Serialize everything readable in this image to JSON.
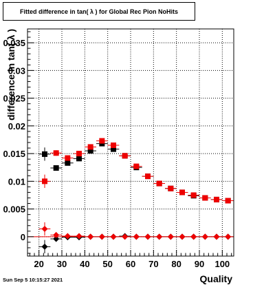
{
  "title": "Fitted difference in tan( λ ) for Global Rec Pion NoHits",
  "timestamp": "Sun Sep  5 10:15:27 2021",
  "chart_data": {
    "type": "scatter",
    "title": "Fitted difference in tan( λ ) for Global Rec Pion NoHits",
    "xlabel": "Quality",
    "ylabel": "difference in tan( λ )",
    "xlim": [
      15,
      105
    ],
    "ylim": [
      -0.0035,
      0.0375
    ],
    "xticks": [
      20,
      30,
      40,
      50,
      60,
      70,
      80,
      90,
      100
    ],
    "yticks": [
      0,
      0.005,
      0.01,
      0.015,
      0.02,
      0.025,
      0.03,
      0.035
    ],
    "ytick_labels": [
      "0",
      "0.005",
      "0.01",
      "0.015",
      "0.02",
      "0.025",
      "0.03",
      "0.035"
    ],
    "grid": true,
    "series": [
      {
        "marker": "square",
        "color": "#000000",
        "x": [
          22.5,
          27.5,
          32.5,
          37.5,
          42.5,
          47.5,
          52.5,
          57.5,
          62.5,
          67.5,
          72.5,
          77.5,
          82.5,
          87.5,
          92.5,
          97.5,
          102.5
        ],
        "y": [
          0.0149,
          0.0124,
          0.0133,
          0.0141,
          0.0155,
          0.0168,
          0.0158,
          0.0146,
          0.0125,
          0.0109,
          0.0096,
          0.0087,
          0.008,
          0.0074,
          0.007,
          0.0067,
          0.0065
        ],
        "yerr": [
          0.0012,
          0.0004,
          0.0003,
          0.0003,
          0.0003,
          0.0003,
          0.0003,
          0.0003,
          0.0002,
          0.0002,
          0.0002,
          0.0002,
          0.0002,
          0.0002,
          0.0002,
          0.0002,
          0.0002
        ]
      },
      {
        "marker": "square",
        "color": "#ee0000",
        "x": [
          22.5,
          27.5,
          32.5,
          37.5,
          42.5,
          47.5,
          52.5,
          57.5,
          62.5,
          67.5,
          72.5,
          77.5,
          82.5,
          87.5,
          92.5,
          97.5,
          102.5
        ],
        "y": [
          0.01,
          0.0151,
          0.0142,
          0.015,
          0.0162,
          0.0173,
          0.0165,
          0.0146,
          0.0127,
          0.0109,
          0.0096,
          0.0087,
          0.008,
          0.0075,
          0.007,
          0.0067,
          0.0065
        ],
        "yerr": [
          0.0012,
          0.0005,
          0.0004,
          0.0003,
          0.0003,
          0.0003,
          0.0003,
          0.0003,
          0.0002,
          0.0002,
          0.0002,
          0.0002,
          0.0002,
          0.0002,
          0.0002,
          0.0002,
          0.0002
        ]
      },
      {
        "marker": "diamond",
        "color": "#000000",
        "x": [
          22.5,
          27.5,
          32.5,
          37.5,
          42.5,
          47.5,
          52.5,
          57.5,
          62.5,
          67.5,
          72.5,
          77.5,
          82.5,
          87.5,
          92.5,
          97.5,
          102.5
        ],
        "y": [
          -0.0018,
          -0.0004,
          -0.0001,
          -0.0001,
          0,
          0,
          0,
          0.0001,
          0,
          0,
          0,
          0,
          0,
          0,
          0,
          0,
          0
        ],
        "yerr": [
          0.0012,
          0.0004,
          0.0003,
          0.0002,
          0.0002,
          0.0002,
          0.0002,
          0.0002,
          0.0002,
          0.0002,
          0.0002,
          0.0002,
          0.0002,
          0.0002,
          0.0002,
          0.0002,
          0.0002
        ]
      },
      {
        "marker": "diamond",
        "color": "#ee0000",
        "x": [
          22.5,
          27.5,
          32.5,
          37.5,
          42.5,
          47.5,
          52.5,
          57.5,
          62.5,
          67.5,
          72.5,
          77.5,
          82.5,
          87.5,
          92.5,
          97.5,
          102.5
        ],
        "y": [
          0.0014,
          0.0003,
          0.0001,
          0.0001,
          0,
          0,
          0,
          0,
          0,
          0,
          0,
          0,
          0,
          0,
          0,
          0,
          0
        ],
        "yerr": [
          0.0012,
          0.0004,
          0.0003,
          0.0002,
          0.0002,
          0.0002,
          0.0002,
          0.0002,
          0.0002,
          0.0002,
          0.0002,
          0.0002,
          0.0002,
          0.0002,
          0.0002,
          0.0002,
          0.0002
        ]
      }
    ]
  }
}
